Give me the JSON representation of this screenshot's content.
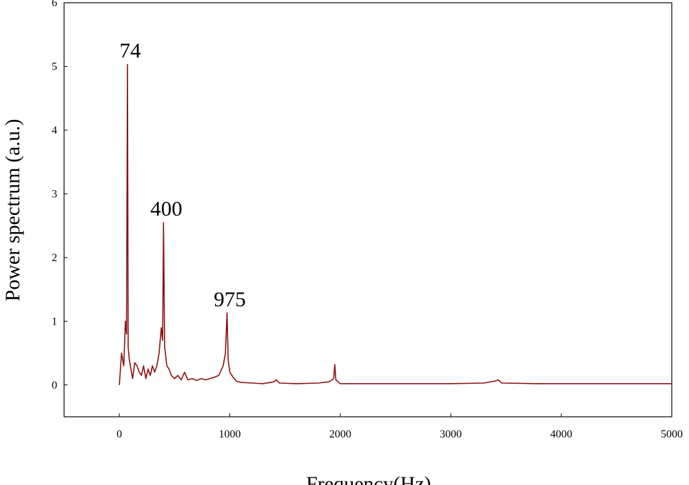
{
  "chart_data": {
    "type": "line",
    "x_label": "Frequency(Hz)",
    "y_label": "Power spectrum (a.u.)",
    "xlim": [
      -500,
      5000
    ],
    "ylim": [
      -0.5,
      6
    ],
    "xticks": [
      0,
      1000,
      2000,
      3000,
      4000,
      5000
    ],
    "yticks": [
      0,
      1,
      2,
      3,
      4,
      5,
      6
    ],
    "color": "#8b1010",
    "annotations": [
      {
        "text": "74",
        "x": 74,
        "y": 5.03
      },
      {
        "text": "400",
        "x": 400,
        "y": 2.55
      },
      {
        "text": "975",
        "x": 975,
        "y": 1.13
      }
    ],
    "x": [
      0,
      20,
      40,
      55,
      65,
      74,
      80,
      90,
      100,
      120,
      140,
      160,
      180,
      200,
      220,
      240,
      260,
      280,
      300,
      320,
      340,
      360,
      380,
      392,
      400,
      410,
      430,
      450,
      470,
      500,
      530,
      560,
      590,
      620,
      660,
      700,
      740,
      780,
      820,
      860,
      900,
      940,
      960,
      975,
      985,
      1000,
      1030,
      1060,
      1100,
      1200,
      1300,
      1400,
      1420,
      1450,
      1600,
      1800,
      1900,
      1940,
      1950,
      1960,
      2000,
      2200,
      2500,
      2800,
      3000,
      3300,
      3400,
      3430,
      3460,
      3800,
      4200,
      4600,
      5000
    ],
    "values": [
      0,
      0.5,
      0.3,
      1.0,
      0.8,
      5.03,
      0.6,
      0.4,
      0.3,
      0.1,
      0.35,
      0.3,
      0.2,
      0.15,
      0.3,
      0.1,
      0.25,
      0.15,
      0.3,
      0.2,
      0.3,
      0.5,
      0.9,
      0.7,
      2.55,
      0.6,
      0.3,
      0.25,
      0.15,
      0.1,
      0.15,
      0.08,
      0.2,
      0.08,
      0.1,
      0.07,
      0.1,
      0.08,
      0.1,
      0.12,
      0.15,
      0.3,
      0.5,
      1.13,
      0.4,
      0.2,
      0.12,
      0.06,
      0.04,
      0.03,
      0.02,
      0.05,
      0.08,
      0.03,
      0.02,
      0.03,
      0.05,
      0.1,
      0.32,
      0.08,
      0.02,
      0.02,
      0.02,
      0.02,
      0.02,
      0.03,
      0.06,
      0.08,
      0.03,
      0.02,
      0.02,
      0.02,
      0.02
    ]
  }
}
